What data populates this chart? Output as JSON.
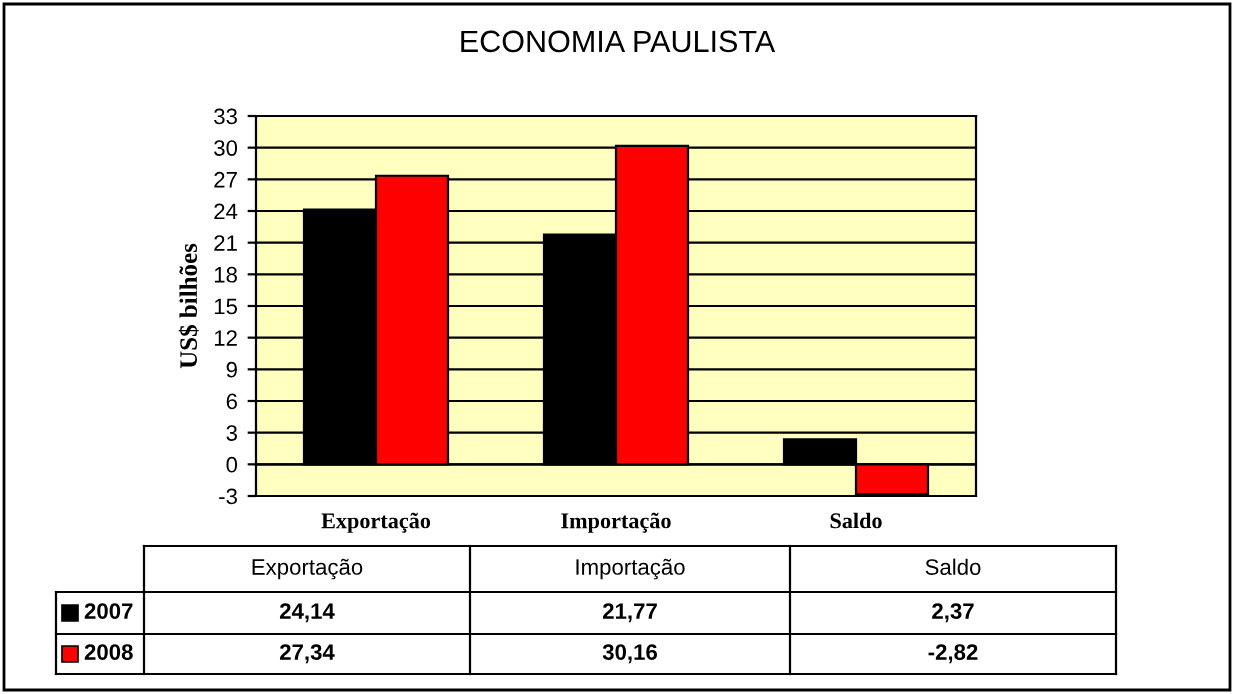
{
  "chart_data": {
    "type": "bar",
    "title": "ECONOMIA PAULISTA",
    "ylabel": "US$ bilhões",
    "categories": [
      "Exportação",
      "Importação",
      "Saldo"
    ],
    "series": [
      {
        "name": "2007",
        "color": "#000000",
        "values": [
          24.14,
          21.77,
          2.37
        ],
        "value_labels": [
          "24,14",
          "21,77",
          "2,37"
        ]
      },
      {
        "name": "2008",
        "color": "#ff0000",
        "values": [
          27.34,
          30.16,
          -2.82
        ],
        "value_labels": [
          "27,34",
          "30,16",
          "-2,82"
        ]
      }
    ],
    "ylim": [
      -3,
      33
    ],
    "yticks": [
      -3,
      0,
      3,
      6,
      9,
      12,
      15,
      18,
      21,
      24,
      27,
      30,
      33
    ],
    "grid": "y",
    "legend": "bottom"
  }
}
